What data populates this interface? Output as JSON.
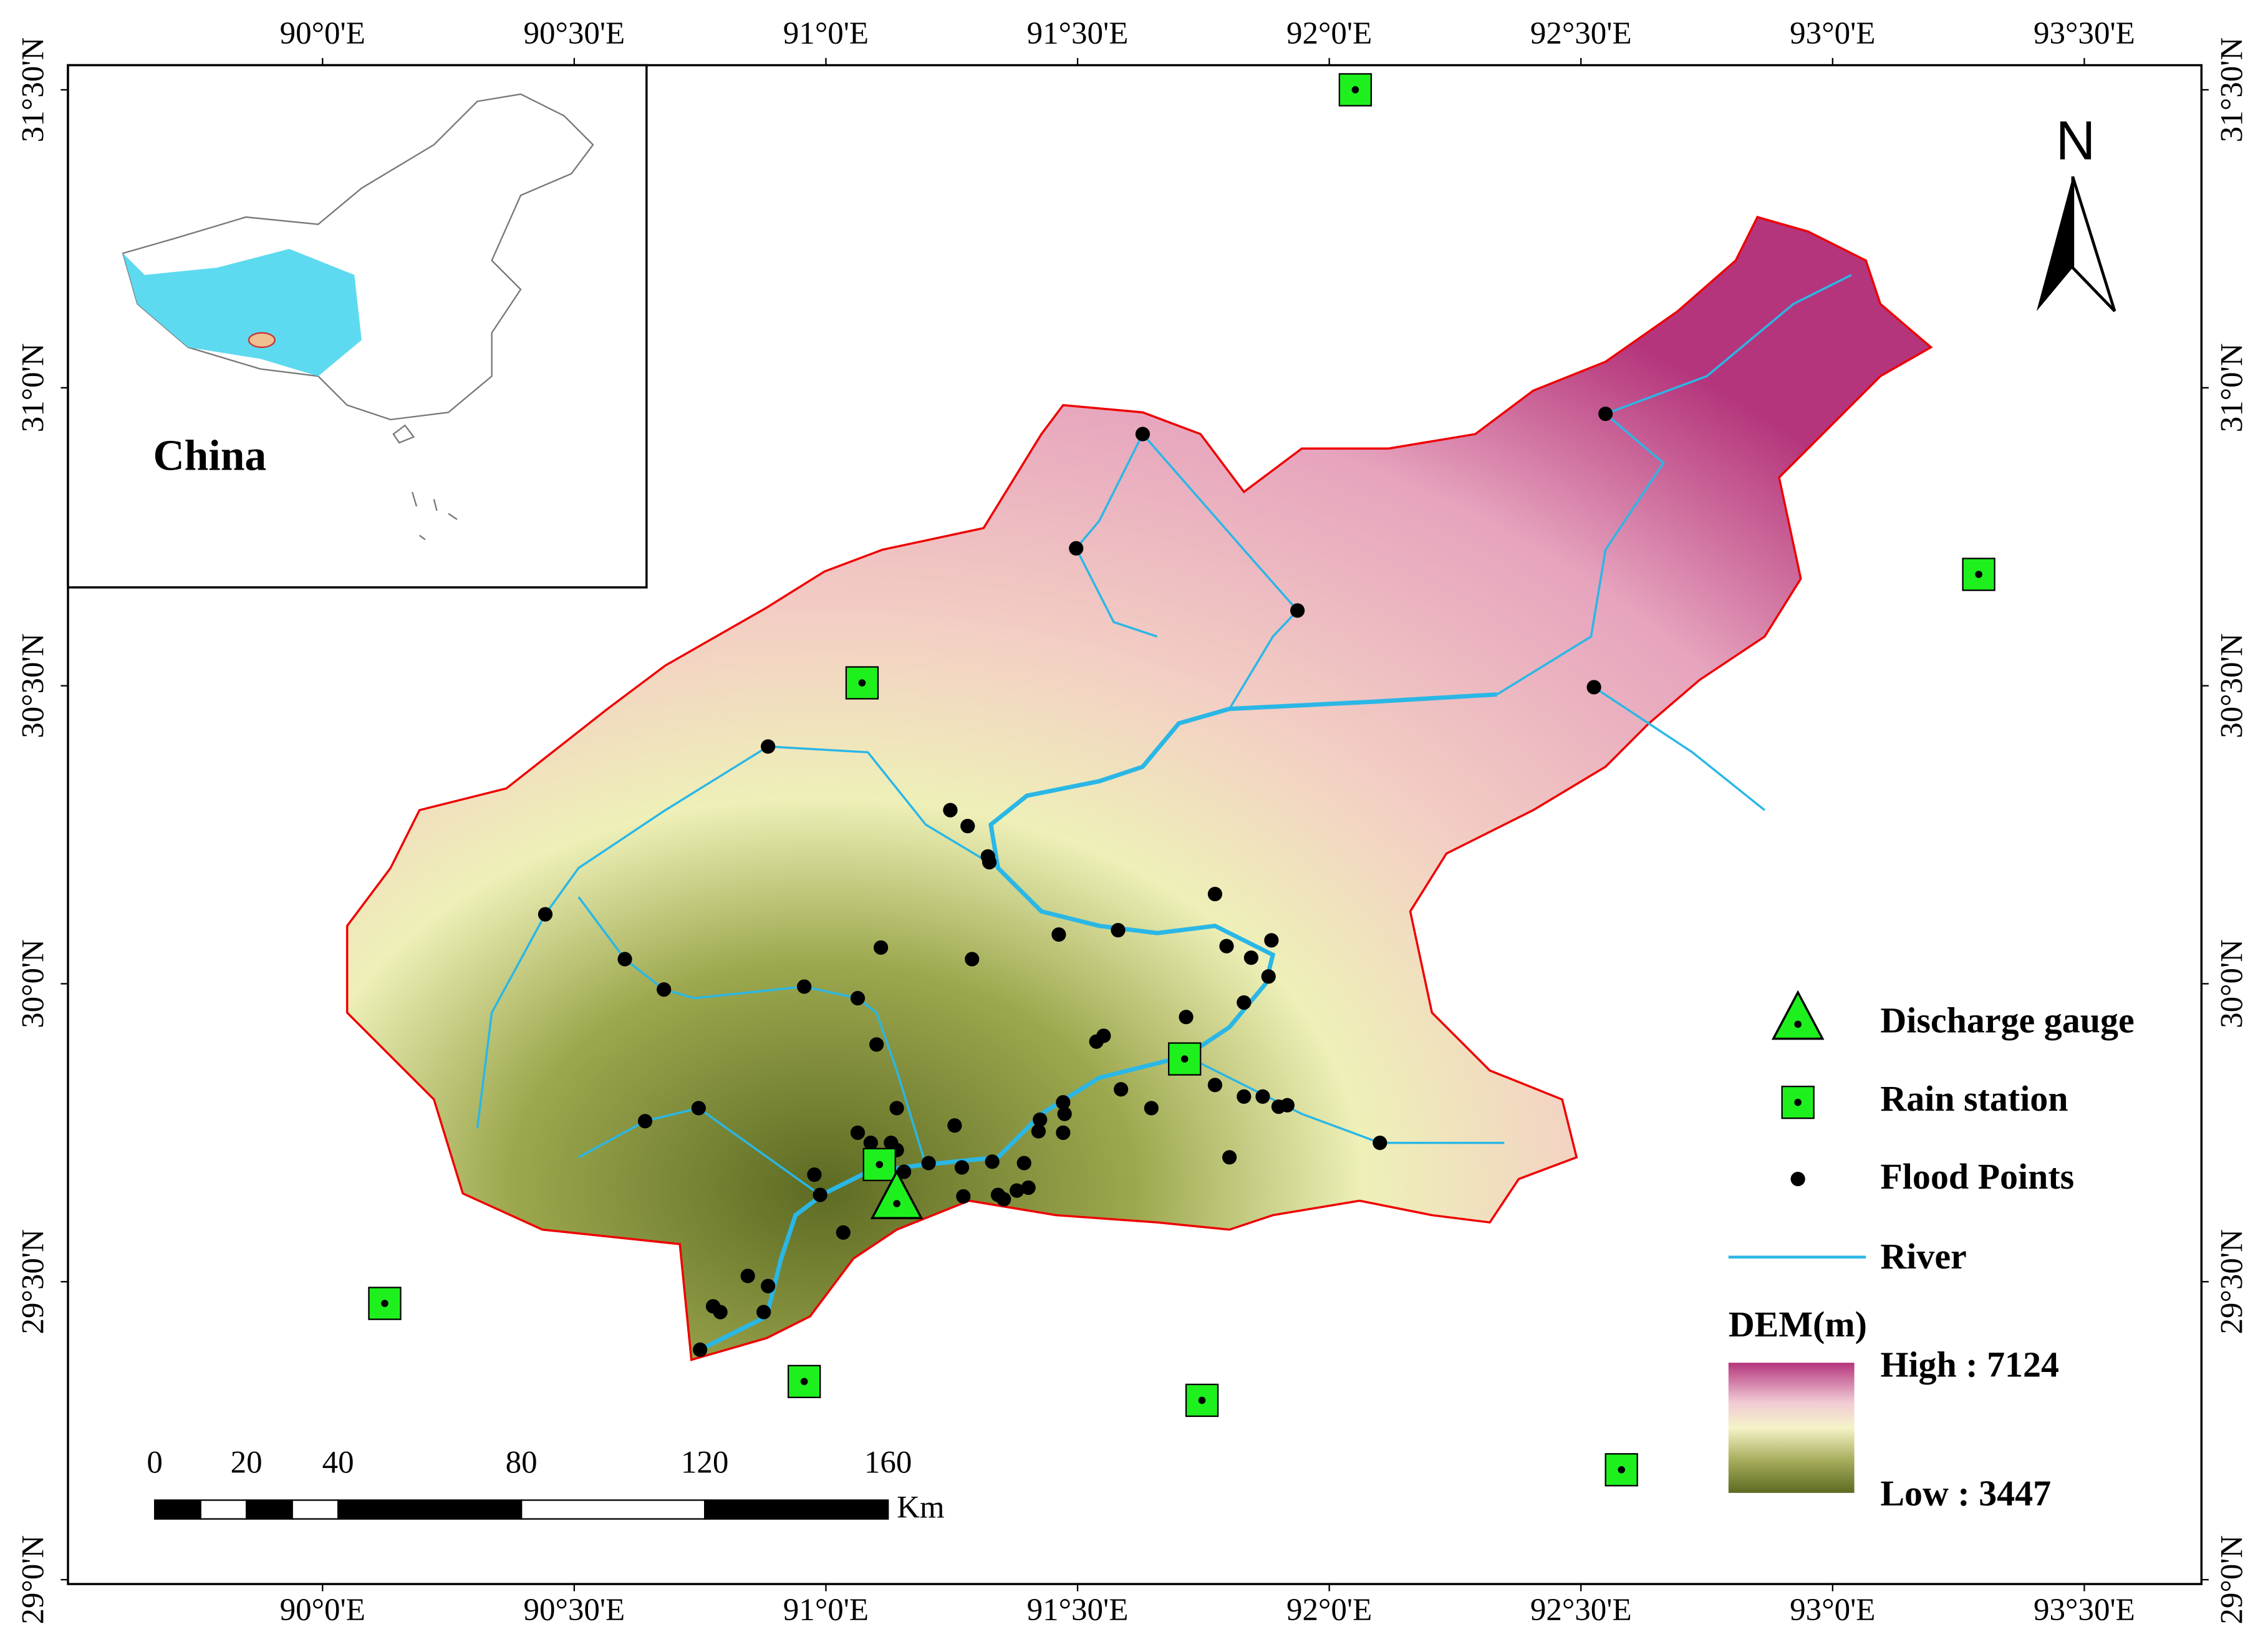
{
  "inset": {
    "label": "China"
  },
  "north_arrow": {
    "label": "N"
  },
  "longitude_ticks": [
    {
      "value": 90,
      "label": "90°0'E"
    },
    {
      "value": 90.5,
      "label": "90°30'E"
    },
    {
      "value": 91,
      "label": "91°0'E"
    },
    {
      "value": 91.5,
      "label": "91°30'E"
    },
    {
      "value": 92,
      "label": "92°0'E"
    },
    {
      "value": 92.5,
      "label": "92°30'E"
    },
    {
      "value": 93,
      "label": "93°0'E"
    },
    {
      "value": 93.5,
      "label": "93°30'E"
    }
  ],
  "latitude_ticks": [
    {
      "value": 31.5,
      "label": "31°30'N"
    },
    {
      "value": 31,
      "label": "31°0'N"
    },
    {
      "value": 30.5,
      "label": "30°30'N"
    },
    {
      "value": 30,
      "label": "30°0'N"
    },
    {
      "value": 29.5,
      "label": "29°30'N"
    },
    {
      "value": 29,
      "label": "29°0'N"
    }
  ],
  "legend": {
    "items": [
      "Discharge gauge",
      "Rain station",
      "Flood Points",
      "River"
    ],
    "dem_title": "DEM(m)",
    "dem_high": "High : 7124",
    "dem_low": "Low : 3447"
  },
  "scale_bar": {
    "ticks": [
      0,
      20,
      40,
      80,
      120,
      160
    ],
    "unit": "Km"
  }
}
